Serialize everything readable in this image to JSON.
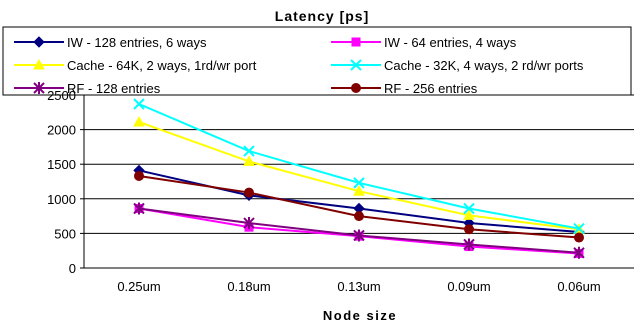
{
  "chart_data": {
    "type": "line",
    "title": "Latency [ps]",
    "xlabel": "Node size",
    "ylabel": "",
    "categories": [
      "0.25um",
      "0.18um",
      "0.13um",
      "0.09um",
      "0.06um"
    ],
    "ylim": [
      0,
      2500
    ],
    "yticks": [
      0,
      500,
      1000,
      1500,
      2000,
      2500
    ],
    "grid": true,
    "legend_position": "top",
    "series": [
      {
        "name": "IW - 128 entries, 6 ways",
        "color": "#000080",
        "marker": "diamond",
        "values": [
          1410,
          1050,
          860,
          650,
          520
        ]
      },
      {
        "name": "IW - 64 entries, 4 ways",
        "color": "#ff00ff",
        "marker": "square",
        "values": [
          860,
          590,
          460,
          310,
          210
        ]
      },
      {
        "name": "Cache - 64K, 2 ways, 1rd/wr port",
        "color": "#ffff00",
        "marker": "triangle",
        "values": [
          2110,
          1540,
          1110,
          760,
          560
        ]
      },
      {
        "name": "Cache - 32K, 4 ways, 2 rd/wr ports",
        "color": "#00ffff",
        "marker": "x",
        "values": [
          2370,
          1690,
          1230,
          860,
          570
        ]
      },
      {
        "name": "RF - 128 entries",
        "color": "#800080",
        "marker": "star",
        "values": [
          860,
          650,
          470,
          340,
          220
        ]
      },
      {
        "name": "RF - 256 entries",
        "color": "#800000",
        "marker": "circle",
        "values": [
          1330,
          1090,
          750,
          560,
          440
        ]
      }
    ]
  }
}
